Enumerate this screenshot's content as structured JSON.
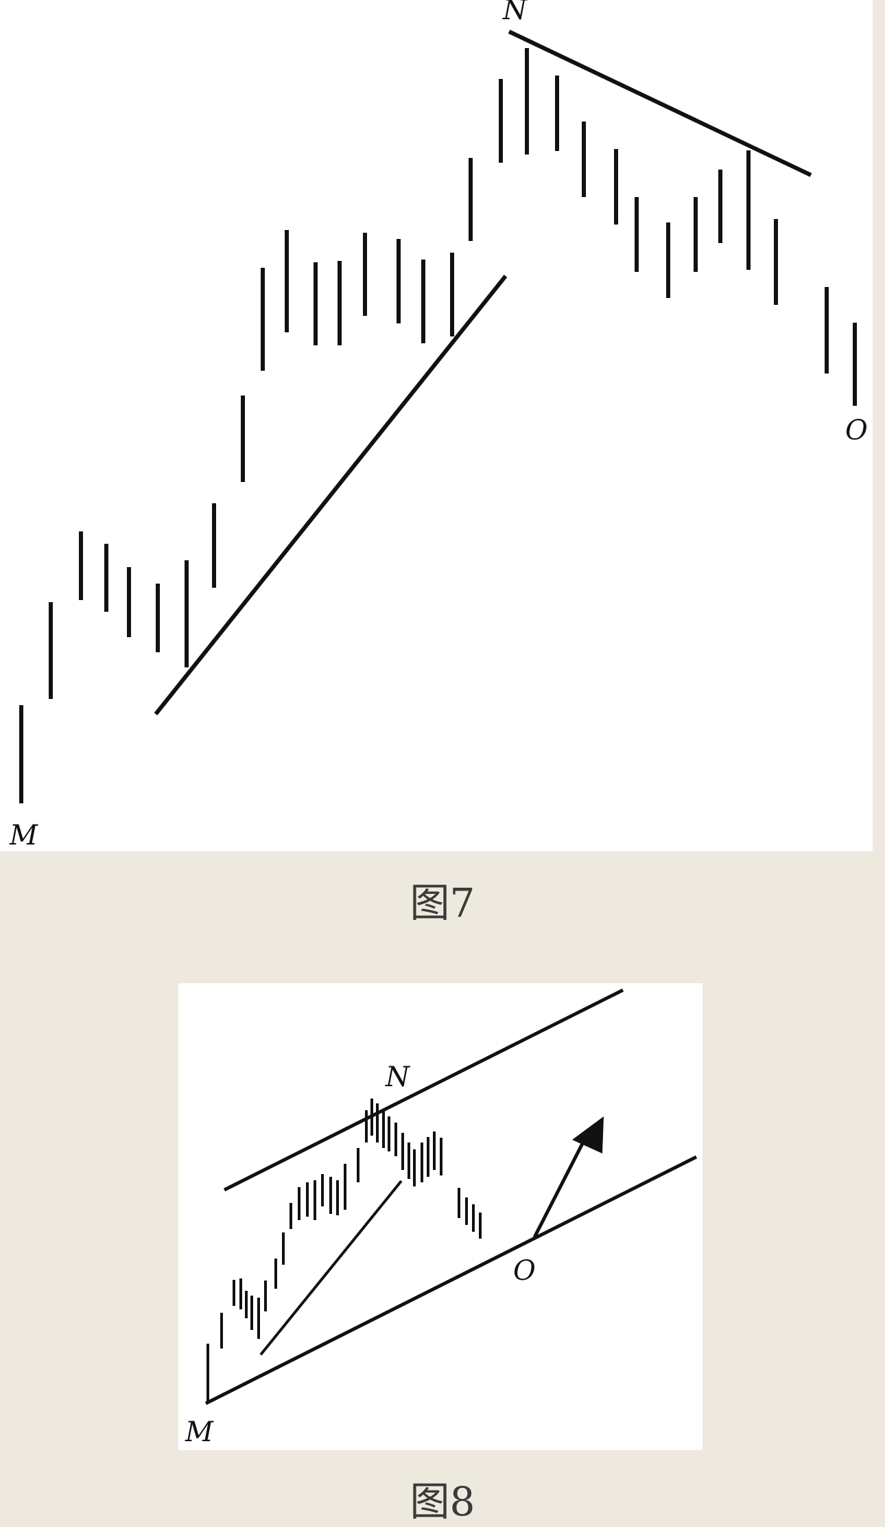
{
  "figures": [
    {
      "caption": "图7",
      "labels": {
        "start": "M",
        "peak": "N",
        "end": "O"
      }
    },
    {
      "caption": "图8",
      "labels": {
        "start": "M",
        "peak": "N",
        "end": "O"
      }
    }
  ]
}
